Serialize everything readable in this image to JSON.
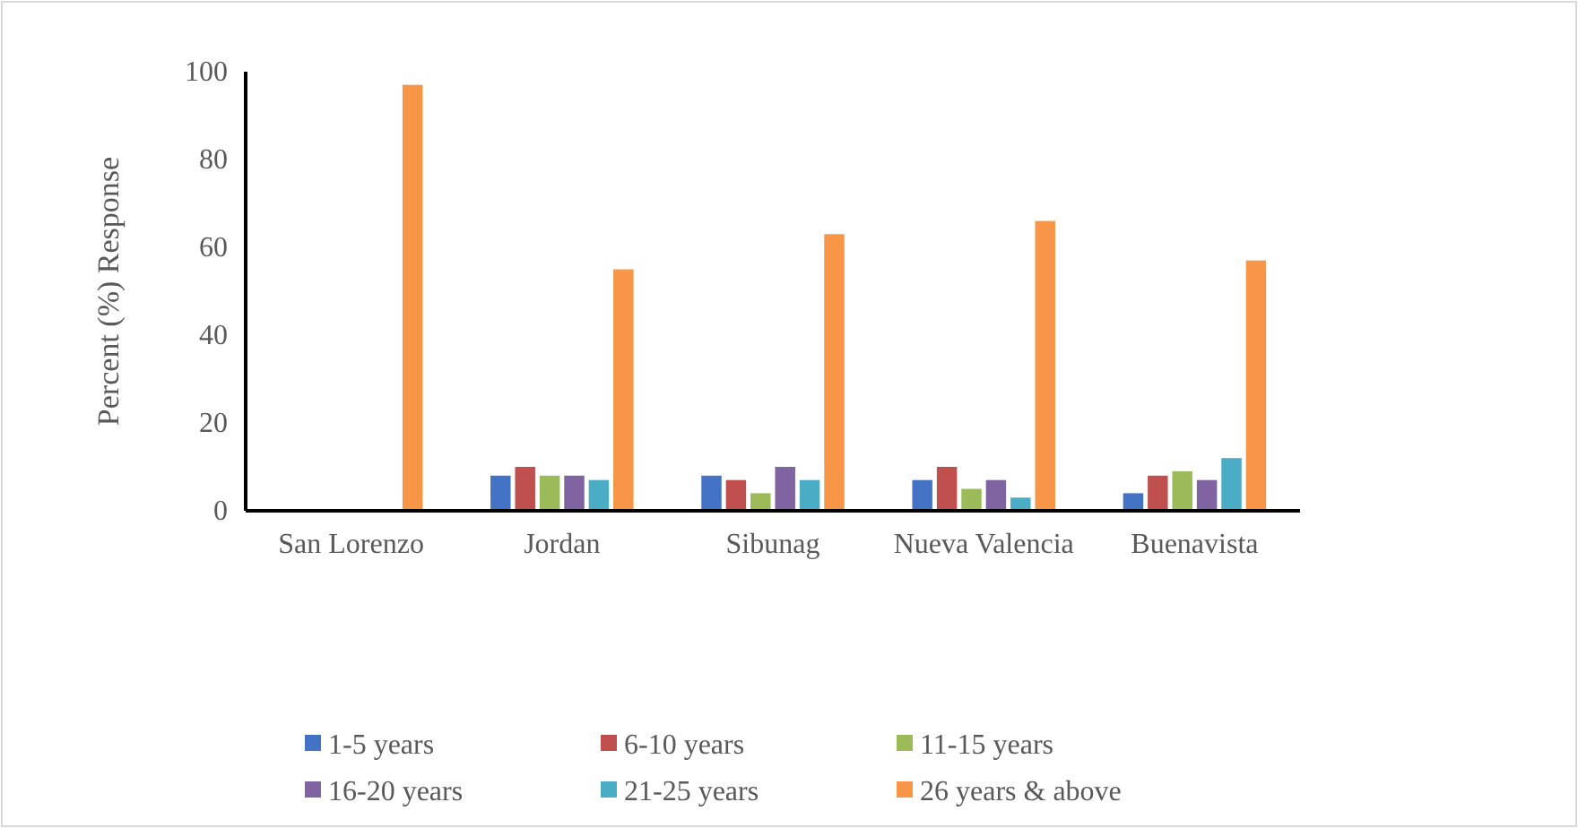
{
  "chart_data": {
    "type": "bar",
    "ylabel": "Percent (%) Response",
    "categories": [
      "San Lorenzo",
      "Jordan",
      "Sibunag",
      "Nueva Valencia",
      "Buenavista"
    ],
    "series": [
      {
        "name": "1-5 years",
        "color": "#4472c4",
        "values": [
          0,
          8,
          8,
          7,
          4
        ]
      },
      {
        "name": "6-10 years",
        "color": "#c0504d",
        "values": [
          0,
          10,
          7,
          10,
          8
        ]
      },
      {
        "name": "11-15 years",
        "color": "#9bbb59",
        "values": [
          0,
          8,
          4,
          5,
          9
        ]
      },
      {
        "name": "16-20 years",
        "color": "#8064a2",
        "values": [
          0,
          8,
          10,
          7,
          7
        ]
      },
      {
        "name": "21-25 years",
        "color": "#4bacc6",
        "values": [
          0,
          7,
          7,
          3,
          12
        ]
      },
      {
        "name": "26 years & above",
        "color": "#f79646",
        "values": [
          97,
          55,
          63,
          66,
          57
        ]
      }
    ],
    "ylim": [
      0,
      100
    ],
    "yticks": [
      0,
      20,
      40,
      60,
      80,
      100
    ],
    "grid": false,
    "legend": "bottom"
  }
}
